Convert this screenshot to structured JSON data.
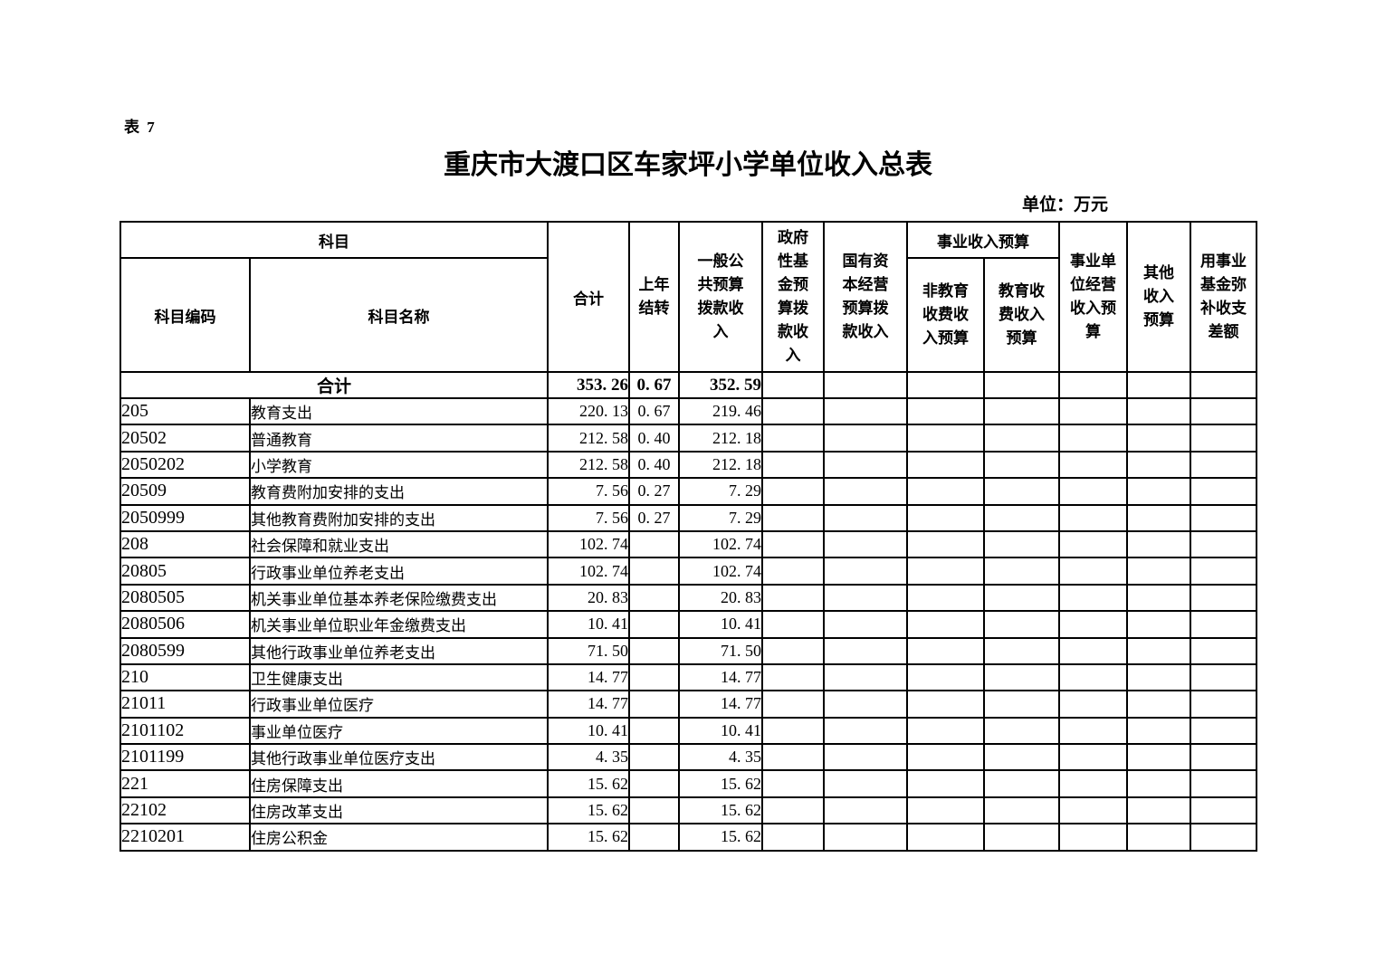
{
  "page": {
    "table_label": "表 7",
    "title": "重庆市大渡口区车家坪小学单位收入总表",
    "unit_label": "单位：万元"
  },
  "colors": {
    "background": "#ffffff",
    "text": "#000000",
    "border": "#000000"
  },
  "table": {
    "header": {
      "subject_group": "科目",
      "subject_code": "科目编码",
      "subject_name": "科目名称",
      "total": "合计",
      "carryover": "上年结转",
      "general_public_budget": "一般公共预算拨款收入",
      "gov_fund_budget": "政府性基金预算拨款收入",
      "state_capital_budget": "国有资本经营预算拨款收入",
      "business_income_group": "事业收入预算",
      "non_edu_fee_income": "非教育收费收入预算",
      "edu_fee_income": "教育收费收入预算",
      "business_operating_income": "事业单位经营收入预算",
      "other_income": "其他收入预算",
      "fund_offset": "用事业基金弥补收支差额"
    },
    "summary_row": {
      "label": "合计",
      "total": "353. 26",
      "carryover": "0. 67",
      "general": "352. 59"
    },
    "rows": [
      {
        "code": "205",
        "name": "教育支出",
        "level": 1,
        "total": "220. 13",
        "carryover": "0. 67",
        "general": "219. 46"
      },
      {
        "code": "20502",
        "name": "普通教育",
        "level": 2,
        "total": "212. 58",
        "carryover": "0. 40",
        "general": "212. 18"
      },
      {
        "code": "2050202",
        "name": "小学教育",
        "level": 3,
        "total": "212. 58",
        "carryover": "0. 40",
        "general": "212. 18"
      },
      {
        "code": "20509",
        "name": "教育费附加安排的支出",
        "level": 2,
        "total": "7. 56",
        "carryover": "0. 27",
        "general": "7. 29"
      },
      {
        "code": "2050999",
        "name": "其他教育费附加安排的支出",
        "level": 3,
        "total": "7. 56",
        "carryover": "0. 27",
        "general": "7. 29"
      },
      {
        "code": "208",
        "name": "社会保障和就业支出",
        "level": 1,
        "total": "102. 74",
        "carryover": "",
        "general": "102. 74"
      },
      {
        "code": "20805",
        "name": "行政事业单位养老支出",
        "level": 2,
        "total": "102. 74",
        "carryover": "",
        "general": "102. 74"
      },
      {
        "code": "2080505",
        "name": "机关事业单位基本养老保险缴费支出",
        "level": 3,
        "total": "20. 83",
        "carryover": "",
        "general": "20. 83"
      },
      {
        "code": "2080506",
        "name": "机关事业单位职业年金缴费支出",
        "level": 3,
        "total": "10. 41",
        "carryover": "",
        "general": "10. 41"
      },
      {
        "code": "2080599",
        "name": "其他行政事业单位养老支出",
        "level": 3,
        "total": "71. 50",
        "carryover": "",
        "general": "71. 50"
      },
      {
        "code": "210",
        "name": "卫生健康支出",
        "level": 1,
        "total": "14. 77",
        "carryover": "",
        "general": "14. 77"
      },
      {
        "code": "21011",
        "name": "行政事业单位医疗",
        "level": 2,
        "total": "14. 77",
        "carryover": "",
        "general": "14. 77"
      },
      {
        "code": "2101102",
        "name": "事业单位医疗",
        "level": 3,
        "total": "10. 41",
        "carryover": "",
        "general": "10. 41"
      },
      {
        "code": "2101199",
        "name": "其他行政事业单位医疗支出",
        "level": 3,
        "total": "4. 35",
        "carryover": "",
        "general": "4. 35"
      },
      {
        "code": "221",
        "name": "住房保障支出",
        "level": 1,
        "total": "15. 62",
        "carryover": "",
        "general": "15. 62"
      },
      {
        "code": "22102",
        "name": "住房改革支出",
        "level": 2,
        "total": "15. 62",
        "carryover": "",
        "general": "15. 62"
      },
      {
        "code": "2210201",
        "name": "住房公积金",
        "level": 3,
        "total": "15. 62",
        "carryover": "",
        "general": "15. 62"
      }
    ]
  }
}
